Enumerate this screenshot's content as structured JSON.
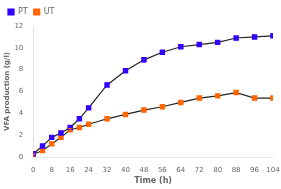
{
  "chart_data": {
    "type": "line",
    "x": [
      0,
      4,
      8,
      12,
      16,
      20,
      24,
      32,
      40,
      48,
      56,
      64,
      72,
      80,
      88,
      96,
      104
    ],
    "color": "#222222",
    "series": [
      {
        "name": "PT",
        "color": "#3300ff",
        "values": [
          0.3,
          1.0,
          1.8,
          2.2,
          2.7,
          3.5,
          4.5,
          6.6,
          7.9,
          8.9,
          9.6,
          10.1,
          10.3,
          10.5,
          10.9,
          11.0,
          11.1
        ],
        "yerr": [
          0.05,
          0.08,
          0.1,
          0.1,
          0.1,
          0.12,
          0.12,
          0.15,
          0.15,
          0.18,
          0.15,
          0.15,
          0.15,
          0.12,
          0.12,
          0.12,
          0.12
        ]
      },
      {
        "name": "UT",
        "color": "#ff6600",
        "values": [
          0.25,
          0.6,
          1.2,
          1.8,
          2.5,
          2.7,
          3.0,
          3.5,
          3.9,
          4.3,
          4.6,
          5.0,
          5.4,
          5.6,
          5.9,
          5.4,
          5.4
        ],
        "yerr": [
          0.05,
          0.07,
          0.08,
          0.08,
          0.1,
          0.1,
          0.1,
          0.1,
          0.1,
          0.1,
          0.1,
          0.1,
          0.1,
          0.1,
          0.1,
          0.1,
          0.1
        ]
      }
    ],
    "xlabel": "Time (h)",
    "ylabel": "VFA production (g/l)",
    "xlim": [
      0,
      104
    ],
    "ylim": [
      0,
      12
    ],
    "xticks": [
      0,
      8,
      16,
      24,
      32,
      40,
      48,
      56,
      64,
      72,
      80,
      88,
      96,
      104
    ],
    "yticks": [
      0,
      2,
      4,
      6,
      8,
      10,
      12
    ],
    "legend": "upper left",
    "marker": "square",
    "grid": false
  }
}
